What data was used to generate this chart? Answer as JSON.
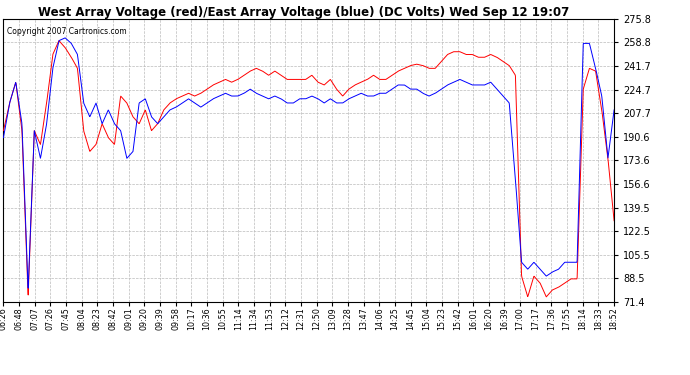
{
  "title": "West Array Voltage (red)/East Array Voltage (blue) (DC Volts) Wed Sep 12 19:07",
  "copyright": "Copyright 2007 Cartronics.com",
  "yticks": [
    71.4,
    88.5,
    105.5,
    122.5,
    139.5,
    156.6,
    173.6,
    190.6,
    207.7,
    224.7,
    241.7,
    258.8,
    275.8
  ],
  "xtick_labels": [
    "06:26",
    "06:48",
    "07:07",
    "07:26",
    "07:45",
    "08:04",
    "08:23",
    "08:42",
    "09:01",
    "09:20",
    "09:39",
    "09:58",
    "10:17",
    "10:36",
    "10:55",
    "11:14",
    "11:34",
    "11:53",
    "12:12",
    "12:31",
    "12:50",
    "13:09",
    "13:28",
    "13:47",
    "14:06",
    "14:25",
    "14:45",
    "15:04",
    "15:23",
    "15:42",
    "16:01",
    "16:20",
    "16:39",
    "17:00",
    "17:17",
    "17:36",
    "17:55",
    "18:14",
    "18:33",
    "18:52"
  ],
  "bg_color": "#ffffff",
  "plot_bg_color": "#ffffff",
  "grid_color": "#bbbbbb",
  "red_color": "#ff0000",
  "blue_color": "#0000ff",
  "ymin": 71.4,
  "ymax": 275.8,
  "red_data": [
    195,
    215,
    230,
    195,
    75,
    195,
    185,
    215,
    250,
    260,
    255,
    248,
    240,
    195,
    180,
    185,
    200,
    190,
    185,
    220,
    215,
    205,
    200,
    210,
    195,
    200,
    210,
    215,
    218,
    220,
    222,
    220,
    222,
    225,
    228,
    230,
    232,
    230,
    232,
    235,
    238,
    240,
    238,
    235,
    238,
    235,
    232,
    232,
    232,
    232,
    235,
    230,
    228,
    232,
    225,
    220,
    225,
    228,
    230,
    232,
    235,
    232,
    232,
    235,
    238,
    240,
    242,
    243,
    242,
    240,
    240,
    245,
    250,
    252,
    252,
    250,
    250,
    248,
    248,
    250,
    248,
    245,
    242,
    235,
    90,
    75,
    90,
    85,
    75,
    80,
    82,
    85,
    88,
    88,
    225,
    240,
    238,
    210,
    175,
    130
  ],
  "blue_data": [
    190,
    215,
    230,
    200,
    80,
    195,
    175,
    200,
    240,
    260,
    262,
    258,
    250,
    215,
    205,
    215,
    200,
    210,
    200,
    195,
    175,
    180,
    215,
    218,
    205,
    200,
    205,
    210,
    212,
    215,
    218,
    215,
    212,
    215,
    218,
    220,
    222,
    220,
    220,
    222,
    225,
    222,
    220,
    218,
    220,
    218,
    215,
    215,
    218,
    218,
    220,
    218,
    215,
    218,
    215,
    215,
    218,
    220,
    222,
    220,
    220,
    222,
    222,
    225,
    228,
    228,
    225,
    225,
    222,
    220,
    222,
    225,
    228,
    230,
    232,
    230,
    228,
    228,
    228,
    230,
    225,
    220,
    215,
    160,
    100,
    95,
    100,
    95,
    90,
    93,
    95,
    100,
    100,
    100,
    258,
    258,
    240,
    220,
    175,
    210
  ]
}
